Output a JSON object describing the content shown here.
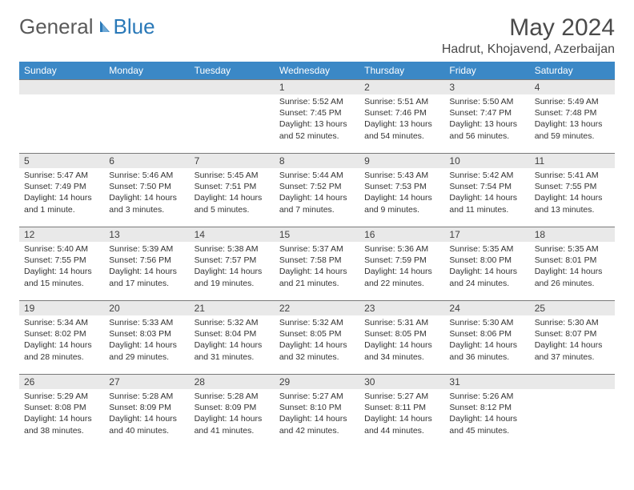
{
  "brand": {
    "part1": "General",
    "part2": "Blue"
  },
  "title": "May 2024",
  "location": "Hadrut, Khojavend, Azerbaijan",
  "colors": {
    "header_bg": "#3b88c6",
    "header_text": "#ffffff",
    "daynum_bg": "#e9e9e9",
    "daynum_border": "#7a7a7a",
    "text": "#333333",
    "title_color": "#4a4a4a",
    "logo_gray": "#5a5a5a",
    "logo_blue": "#2a79b8"
  },
  "weekdays": [
    "Sunday",
    "Monday",
    "Tuesday",
    "Wednesday",
    "Thursday",
    "Friday",
    "Saturday"
  ],
  "weeks": [
    [
      null,
      null,
      null,
      {
        "n": "1",
        "sr": "5:52 AM",
        "ss": "7:45 PM",
        "dl": "13 hours and 52 minutes."
      },
      {
        "n": "2",
        "sr": "5:51 AM",
        "ss": "7:46 PM",
        "dl": "13 hours and 54 minutes."
      },
      {
        "n": "3",
        "sr": "5:50 AM",
        "ss": "7:47 PM",
        "dl": "13 hours and 56 minutes."
      },
      {
        "n": "4",
        "sr": "5:49 AM",
        "ss": "7:48 PM",
        "dl": "13 hours and 59 minutes."
      }
    ],
    [
      {
        "n": "5",
        "sr": "5:47 AM",
        "ss": "7:49 PM",
        "dl": "14 hours and 1 minute."
      },
      {
        "n": "6",
        "sr": "5:46 AM",
        "ss": "7:50 PM",
        "dl": "14 hours and 3 minutes."
      },
      {
        "n": "7",
        "sr": "5:45 AM",
        "ss": "7:51 PM",
        "dl": "14 hours and 5 minutes."
      },
      {
        "n": "8",
        "sr": "5:44 AM",
        "ss": "7:52 PM",
        "dl": "14 hours and 7 minutes."
      },
      {
        "n": "9",
        "sr": "5:43 AM",
        "ss": "7:53 PM",
        "dl": "14 hours and 9 minutes."
      },
      {
        "n": "10",
        "sr": "5:42 AM",
        "ss": "7:54 PM",
        "dl": "14 hours and 11 minutes."
      },
      {
        "n": "11",
        "sr": "5:41 AM",
        "ss": "7:55 PM",
        "dl": "14 hours and 13 minutes."
      }
    ],
    [
      {
        "n": "12",
        "sr": "5:40 AM",
        "ss": "7:55 PM",
        "dl": "14 hours and 15 minutes."
      },
      {
        "n": "13",
        "sr": "5:39 AM",
        "ss": "7:56 PM",
        "dl": "14 hours and 17 minutes."
      },
      {
        "n": "14",
        "sr": "5:38 AM",
        "ss": "7:57 PM",
        "dl": "14 hours and 19 minutes."
      },
      {
        "n": "15",
        "sr": "5:37 AM",
        "ss": "7:58 PM",
        "dl": "14 hours and 21 minutes."
      },
      {
        "n": "16",
        "sr": "5:36 AM",
        "ss": "7:59 PM",
        "dl": "14 hours and 22 minutes."
      },
      {
        "n": "17",
        "sr": "5:35 AM",
        "ss": "8:00 PM",
        "dl": "14 hours and 24 minutes."
      },
      {
        "n": "18",
        "sr": "5:35 AM",
        "ss": "8:01 PM",
        "dl": "14 hours and 26 minutes."
      }
    ],
    [
      {
        "n": "19",
        "sr": "5:34 AM",
        "ss": "8:02 PM",
        "dl": "14 hours and 28 minutes."
      },
      {
        "n": "20",
        "sr": "5:33 AM",
        "ss": "8:03 PM",
        "dl": "14 hours and 29 minutes."
      },
      {
        "n": "21",
        "sr": "5:32 AM",
        "ss": "8:04 PM",
        "dl": "14 hours and 31 minutes."
      },
      {
        "n": "22",
        "sr": "5:32 AM",
        "ss": "8:05 PM",
        "dl": "14 hours and 32 minutes."
      },
      {
        "n": "23",
        "sr": "5:31 AM",
        "ss": "8:05 PM",
        "dl": "14 hours and 34 minutes."
      },
      {
        "n": "24",
        "sr": "5:30 AM",
        "ss": "8:06 PM",
        "dl": "14 hours and 36 minutes."
      },
      {
        "n": "25",
        "sr": "5:30 AM",
        "ss": "8:07 PM",
        "dl": "14 hours and 37 minutes."
      }
    ],
    [
      {
        "n": "26",
        "sr": "5:29 AM",
        "ss": "8:08 PM",
        "dl": "14 hours and 38 minutes."
      },
      {
        "n": "27",
        "sr": "5:28 AM",
        "ss": "8:09 PM",
        "dl": "14 hours and 40 minutes."
      },
      {
        "n": "28",
        "sr": "5:28 AM",
        "ss": "8:09 PM",
        "dl": "14 hours and 41 minutes."
      },
      {
        "n": "29",
        "sr": "5:27 AM",
        "ss": "8:10 PM",
        "dl": "14 hours and 42 minutes."
      },
      {
        "n": "30",
        "sr": "5:27 AM",
        "ss": "8:11 PM",
        "dl": "14 hours and 44 minutes."
      },
      {
        "n": "31",
        "sr": "5:26 AM",
        "ss": "8:12 PM",
        "dl": "14 hours and 45 minutes."
      },
      null
    ]
  ],
  "labels": {
    "sunrise": "Sunrise:",
    "sunset": "Sunset:",
    "daylight": "Daylight:"
  }
}
